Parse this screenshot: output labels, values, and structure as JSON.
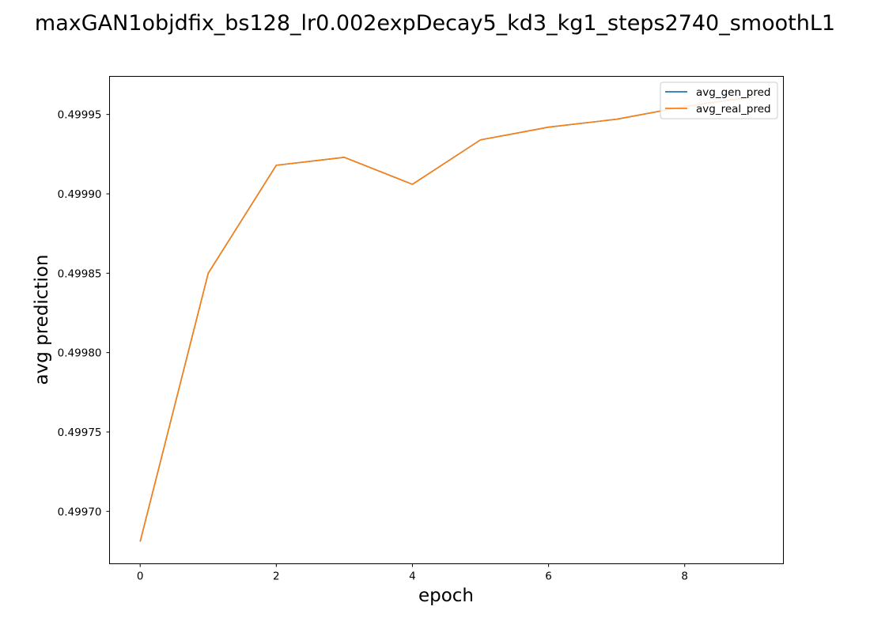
{
  "chart_data": {
    "type": "line",
    "title": "maxGAN1objdfix_bs128_lr0.002expDecay5_kd3_kg1_steps2740_smoothL1",
    "xlabel": "epoch",
    "ylabel": "avg prediction",
    "xlim": [
      -0.45,
      9.45
    ],
    "ylim": [
      0.499667,
      0.499974
    ],
    "xticks": [
      0,
      2,
      4,
      6,
      8
    ],
    "yticks": [
      0.4997,
      0.49975,
      0.4998,
      0.49985,
      0.4999,
      0.49995
    ],
    "ytick_labels": [
      "0.49970",
      "0.49975",
      "0.49980",
      "0.49985",
      "0.49990",
      "0.49995"
    ],
    "grid": false,
    "legend_position": "upper right",
    "series": [
      {
        "name": "avg_gen_pred",
        "color": "#1f77b4",
        "x": [
          0,
          1,
          2,
          3,
          4,
          5,
          6,
          7,
          8,
          9
        ],
        "y": [
          0.499681,
          0.49985,
          0.499918,
          0.499923,
          0.499906,
          0.499934,
          0.499942,
          0.499947,
          0.499955,
          0.499961
        ]
      },
      {
        "name": "avg_real_pred",
        "color": "#ff7f0e",
        "x": [
          0,
          1,
          2,
          3,
          4,
          5,
          6,
          7,
          8,
          9
        ],
        "y": [
          0.499681,
          0.49985,
          0.499918,
          0.499923,
          0.499906,
          0.499934,
          0.499942,
          0.499947,
          0.499955,
          0.499961
        ]
      }
    ]
  }
}
